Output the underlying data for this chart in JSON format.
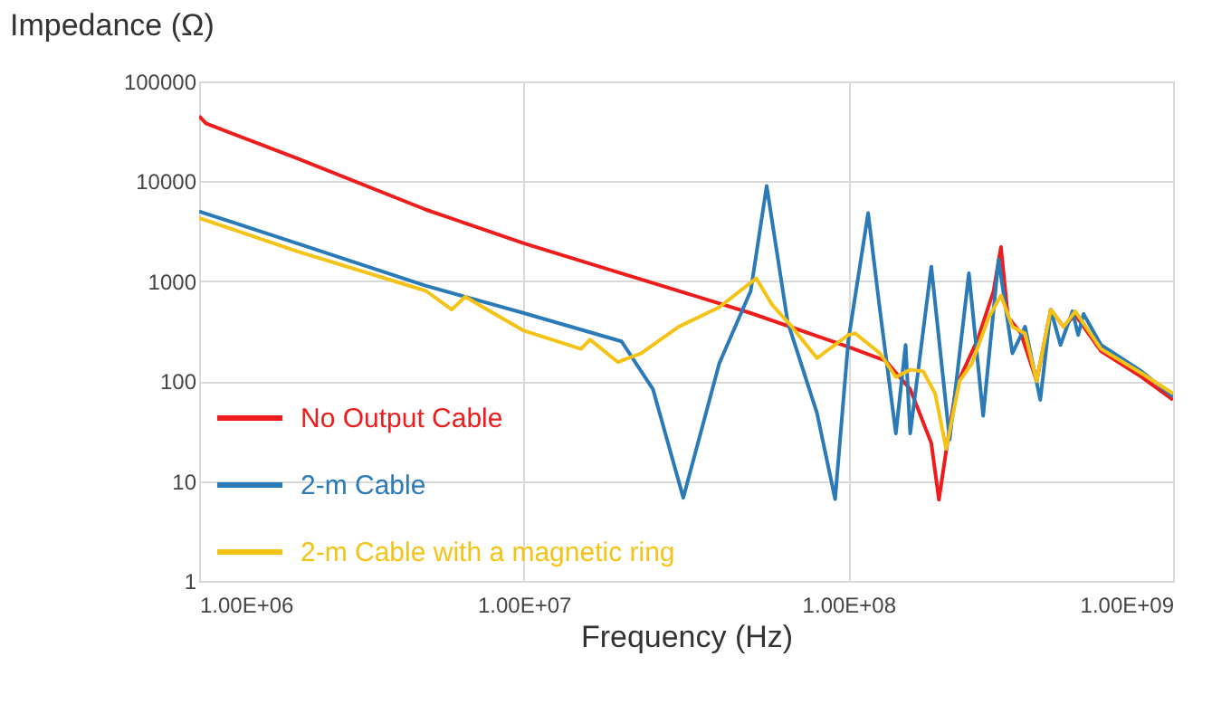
{
  "chart_data": {
    "type": "line",
    "xlabel": "Frequency (Hz)",
    "ylabel": "Impedance (Ω)",
    "log": "xy",
    "grid": true,
    "legend": "bottom left",
    "line_style": "solid",
    "marker": "none",
    "xlim": [
      1000000,
      1000000000
    ],
    "ylim": [
      1,
      100000
    ],
    "xticks": [
      {
        "value": 1000000,
        "label": "1.00E+06"
      },
      {
        "value": 10000000,
        "label": "1.00E+07"
      },
      {
        "value": 100000000,
        "label": "1.00E+08"
      },
      {
        "value": 1000000000,
        "label": "1.00E+09"
      }
    ],
    "yticks": [
      1,
      10,
      100,
      1000,
      10000,
      100000
    ],
    "series": [
      {
        "name": "No Output Cable",
        "color": "#ee1c1c",
        "x": [
          1000000,
          1050000,
          2000000,
          5000000,
          10000000,
          20000000,
          50000000,
          100000000,
          130000000,
          155000000,
          180000000,
          190000000,
          200000000,
          215000000,
          250000000,
          280000000,
          295000000,
          310000000,
          340000000,
          380000000,
          420000000,
          460000000,
          500000000,
          600000000,
          800000000,
          1000000000
        ],
        "values": [
          45000,
          38000,
          17000,
          5200,
          2400,
          1200,
          480,
          220,
          160,
          83,
          24,
          6.5,
          20,
          90,
          260,
          800,
          2200,
          440,
          300,
          100,
          520,
          350,
          460,
          200,
          110,
          65
        ]
      },
      {
        "name": "2-m Cable",
        "color": "#2a7ab8",
        "x": [
          1000000,
          2000000,
          5000000,
          10000000,
          20000000,
          25000000,
          31000000,
          40000000,
          50000000,
          56000000,
          65000000,
          80000000,
          91000000,
          100000000,
          115000000,
          125000000,
          140000000,
          150000000,
          155000000,
          180000000,
          205000000,
          235000000,
          260000000,
          290000000,
          320000000,
          350000000,
          390000000,
          420000000,
          450000000,
          490000000,
          510000000,
          530000000,
          600000000,
          800000000,
          1000000000
        ],
        "values": [
          5000,
          2400,
          900,
          480,
          250,
          83,
          6.8,
          150,
          800,
          9000,
          390,
          48,
          6.6,
          260,
          4800,
          520,
          30,
          230,
          30,
          1400,
          26,
          1200,
          45,
          1650,
          190,
          350,
          65,
          520,
          230,
          500,
          290,
          470,
          230,
          125,
          70
        ]
      },
      {
        "name": "2-m Cable with a magnetic ring",
        "color": "#f5c216",
        "x": [
          1000000,
          2000000,
          5000000,
          6000000,
          6600000,
          10000000,
          15000000,
          16000000,
          19500000,
          23000000,
          30000000,
          40000000,
          52000000,
          58000000,
          67000000,
          80000000,
          100000000,
          105000000,
          125000000,
          140000000,
          155000000,
          170000000,
          185000000,
          200000000,
          220000000,
          240000000,
          270000000,
          295000000,
          320000000,
          350000000,
          380000000,
          420000000,
          460000000,
          500000000,
          600000000,
          800000000,
          1000000000
        ],
        "values": [
          4300,
          2000,
          800,
          520,
          700,
          320,
          210,
          260,
          155,
          190,
          350,
          550,
          1070,
          590,
          350,
          170,
          290,
          300,
          190,
          110,
          130,
          125,
          75,
          21,
          100,
          150,
          430,
          720,
          350,
          300,
          100,
          520,
          350,
          500,
          210,
          120,
          75
        ]
      }
    ]
  }
}
